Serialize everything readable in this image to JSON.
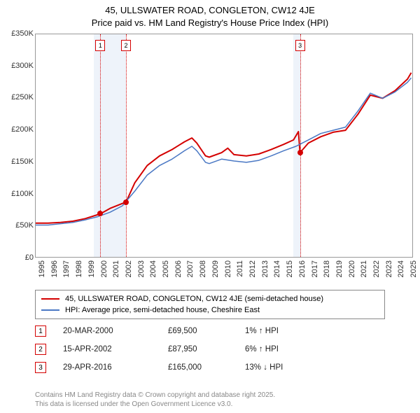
{
  "title_line1": "45, ULLSWATER ROAD, CONGLETON, CW12 4JE",
  "title_line2": "Price paid vs. HM Land Registry's House Price Index (HPI)",
  "footer_line1": "Contains HM Land Registry data © Crown copyright and database right 2025.",
  "footer_line2": "This data is licensed under the Open Government Licence v3.0.",
  "chart": {
    "type": "line",
    "background_color": "#ffffff",
    "border_color": "#999999",
    "x_years": [
      1995,
      1996,
      1997,
      1998,
      1999,
      2000,
      2001,
      2002,
      2003,
      2004,
      2005,
      2006,
      2007,
      2008,
      2009,
      2010,
      2011,
      2012,
      2013,
      2014,
      2015,
      2016,
      2017,
      2018,
      2019,
      2020,
      2021,
      2022,
      2023,
      2024,
      2025
    ],
    "xlim": [
      1995,
      2025.5
    ],
    "ylim": [
      0,
      350000
    ],
    "ytick_step": 50000,
    "ytick_labels": [
      "£0",
      "£50K",
      "£100K",
      "£150K",
      "£200K",
      "£250K",
      "£300K",
      "£350K"
    ],
    "shaded_bands": [
      {
        "from_year": 1999.7,
        "to_year": 2002.3
      },
      {
        "from_year": 2015.8,
        "to_year": 2016.4
      }
    ],
    "series": [
      {
        "name": "property",
        "label": "45, ULLSWATER ROAD, CONGLETON, CW12 4JE (semi-detached house)",
        "color": "#d40000",
        "line_width": 2,
        "points": [
          [
            1995,
            55000
          ],
          [
            1996,
            55000
          ],
          [
            1997,
            56000
          ],
          [
            1998,
            58000
          ],
          [
            1999,
            62000
          ],
          [
            2000.22,
            69500
          ],
          [
            2001,
            78000
          ],
          [
            2002.29,
            87950
          ],
          [
            2003,
            118000
          ],
          [
            2004,
            145000
          ],
          [
            2005,
            160000
          ],
          [
            2006,
            170000
          ],
          [
            2007,
            182000
          ],
          [
            2007.6,
            188000
          ],
          [
            2008,
            180000
          ],
          [
            2008.7,
            160000
          ],
          [
            2009,
            158000
          ],
          [
            2010,
            165000
          ],
          [
            2010.5,
            172000
          ],
          [
            2011,
            162000
          ],
          [
            2012,
            160000
          ],
          [
            2013,
            163000
          ],
          [
            2014,
            170000
          ],
          [
            2015,
            178000
          ],
          [
            2015.8,
            185000
          ],
          [
            2016.2,
            198000
          ],
          [
            2016.33,
            165000
          ],
          [
            2017,
            180000
          ],
          [
            2018,
            190000
          ],
          [
            2019,
            197000
          ],
          [
            2020,
            200000
          ],
          [
            2021,
            225000
          ],
          [
            2022,
            255000
          ],
          [
            2023,
            250000
          ],
          [
            2024,
            262000
          ],
          [
            2025,
            280000
          ],
          [
            2025.3,
            290000
          ]
        ]
      },
      {
        "name": "hpi",
        "label": "HPI: Average price, semi-detached house, Cheshire East",
        "color": "#4a78c4",
        "line_width": 1.5,
        "points": [
          [
            1995,
            52000
          ],
          [
            1996,
            52000
          ],
          [
            1997,
            54000
          ],
          [
            1998,
            56000
          ],
          [
            1999,
            60000
          ],
          [
            2000,
            65000
          ],
          [
            2001,
            72000
          ],
          [
            2002,
            82000
          ],
          [
            2003,
            105000
          ],
          [
            2004,
            130000
          ],
          [
            2005,
            145000
          ],
          [
            2006,
            155000
          ],
          [
            2007,
            168000
          ],
          [
            2007.6,
            175000
          ],
          [
            2008,
            168000
          ],
          [
            2008.7,
            150000
          ],
          [
            2009,
            148000
          ],
          [
            2010,
            155000
          ],
          [
            2011,
            152000
          ],
          [
            2012,
            150000
          ],
          [
            2013,
            153000
          ],
          [
            2014,
            160000
          ],
          [
            2015,
            168000
          ],
          [
            2016,
            175000
          ],
          [
            2017,
            185000
          ],
          [
            2018,
            195000
          ],
          [
            2019,
            200000
          ],
          [
            2020,
            205000
          ],
          [
            2021,
            230000
          ],
          [
            2022,
            258000
          ],
          [
            2023,
            250000
          ],
          [
            2024,
            260000
          ],
          [
            2025,
            275000
          ],
          [
            2025.3,
            282000
          ]
        ]
      }
    ],
    "markers": [
      {
        "n": "1",
        "year": 2000.22,
        "price": 69500,
        "color": "#d40000"
      },
      {
        "n": "2",
        "year": 2002.29,
        "price": 87950,
        "color": "#d40000"
      },
      {
        "n": "3",
        "year": 2016.33,
        "price": 165000,
        "color": "#d40000"
      }
    ]
  },
  "legend": {
    "rows": [
      {
        "color": "#d40000",
        "label": "45, ULLSWATER ROAD, CONGLETON, CW12 4JE (semi-detached house)"
      },
      {
        "color": "#4a78c4",
        "label": "HPI: Average price, semi-detached house, Cheshire East"
      }
    ]
  },
  "transactions": [
    {
      "n": "1",
      "date": "20-MAR-2000",
      "price": "£69,500",
      "delta": "1% ↑ HPI",
      "color": "#d40000"
    },
    {
      "n": "2",
      "date": "15-APR-2002",
      "price": "£87,950",
      "delta": "6% ↑ HPI",
      "color": "#d40000"
    },
    {
      "n": "3",
      "date": "29-APR-2016",
      "price": "£165,000",
      "delta": "13% ↓ HPI",
      "color": "#d40000"
    }
  ]
}
